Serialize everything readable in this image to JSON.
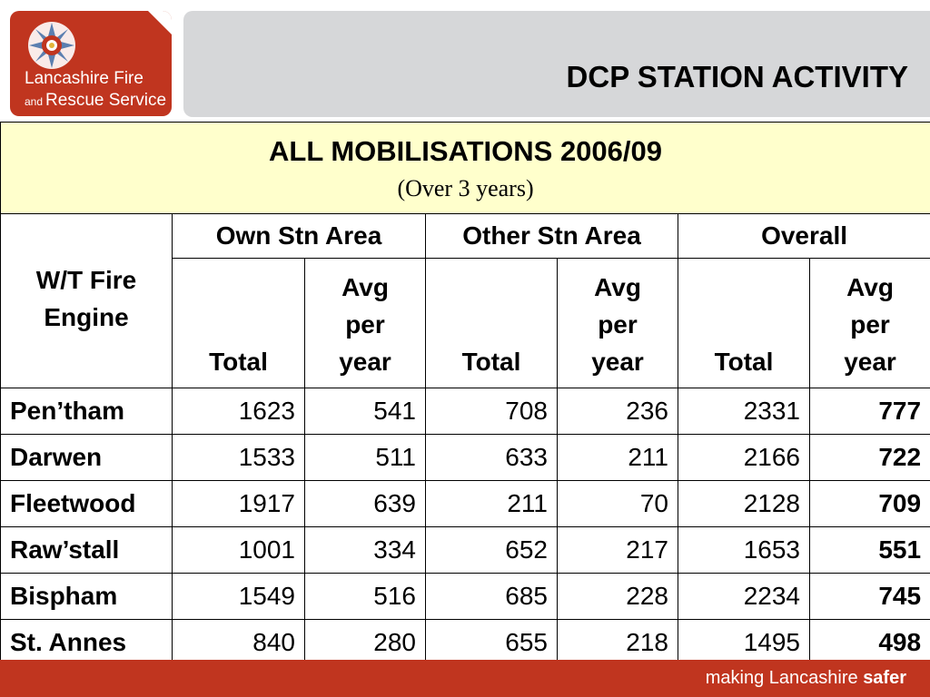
{
  "logo": {
    "line1": "Lancashire Fire",
    "line2_small": "and",
    "line2_big": "Rescue Service"
  },
  "header": {
    "title": "DCP STATION ACTIVITY"
  },
  "table": {
    "caption": {
      "title": "ALL MOBILISATIONS 2006/09",
      "subtitle": "(Over 3 years)"
    },
    "row_header": "W/T Fire Engine",
    "groups": [
      "Own Stn Area",
      "Other Stn Area",
      "Overall"
    ],
    "subheaders": {
      "total": "Total",
      "avg_line1": "Avg",
      "avg_line2": "per",
      "avg_line3": "year"
    },
    "rows": [
      {
        "station": "Pen’tham",
        "own_total": "1623",
        "own_avg": "541",
        "other_total": "708",
        "other_avg": "236",
        "overall_total": "2331",
        "overall_avg": "777"
      },
      {
        "station": "Darwen",
        "own_total": "1533",
        "own_avg": "511",
        "other_total": "633",
        "other_avg": "211",
        "overall_total": "2166",
        "overall_avg": "722"
      },
      {
        "station": "Fleetwood",
        "own_total": "1917",
        "own_avg": "639",
        "other_total": "211",
        "other_avg": "70",
        "overall_total": "2128",
        "overall_avg": "709"
      },
      {
        "station": "Raw’stall",
        "own_total": "1001",
        "own_avg": "334",
        "other_total": "652",
        "other_avg": "217",
        "overall_total": "1653",
        "overall_avg": "551"
      },
      {
        "station": "Bispham",
        "own_total": "1549",
        "own_avg": "516",
        "other_total": "685",
        "other_avg": "228",
        "overall_total": "2234",
        "overall_avg": "745"
      },
      {
        "station": "St. Annes",
        "own_total": "840",
        "own_avg": "280",
        "other_total": "655",
        "other_avg": "218",
        "overall_total": "1495",
        "overall_avg": "498"
      }
    ]
  },
  "footer": {
    "tagline": "making Lancashire",
    "tagline_bold": "safer"
  },
  "colors": {
    "brand_red": "#c0351f",
    "header_gray": "#d6d7d9",
    "caption_yellow": "#ffffcc"
  },
  "icons": {
    "logo_crest": "rose-crest-icon"
  }
}
